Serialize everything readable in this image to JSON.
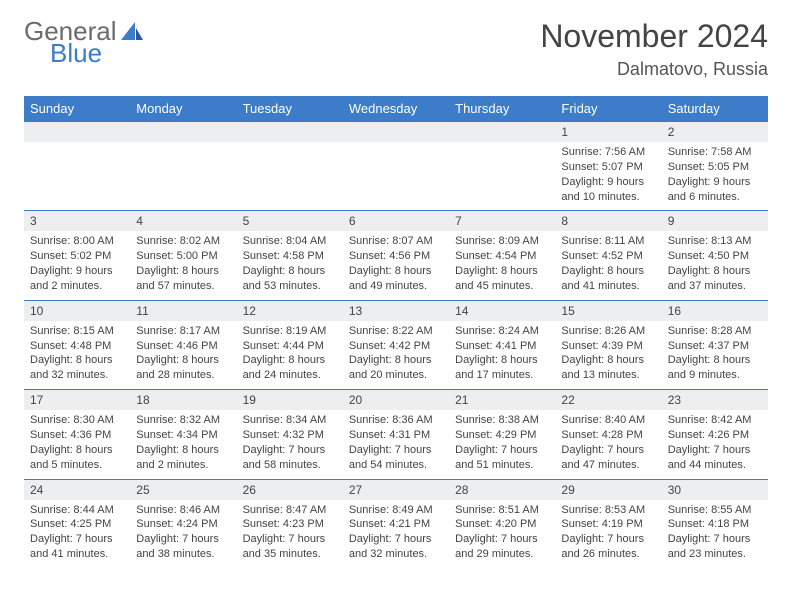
{
  "logo": {
    "word1": "General",
    "word2": "Blue"
  },
  "header": {
    "month_title": "November 2024",
    "location": "Dalmatovo, Russia"
  },
  "colors": {
    "header_bg": "#3d7cc9",
    "header_fg": "#ffffff",
    "daynum_bg": "#eceef0",
    "text": "#444444",
    "logo_gray": "#6b6b6b",
    "logo_blue": "#3d7cc9",
    "row_border": "#3d7cc9"
  },
  "weekdays": [
    "Sunday",
    "Monday",
    "Tuesday",
    "Wednesday",
    "Thursday",
    "Friday",
    "Saturday"
  ],
  "weeks": [
    [
      {
        "n": "",
        "lines": []
      },
      {
        "n": "",
        "lines": []
      },
      {
        "n": "",
        "lines": []
      },
      {
        "n": "",
        "lines": []
      },
      {
        "n": "",
        "lines": []
      },
      {
        "n": "1",
        "lines": [
          "Sunrise: 7:56 AM",
          "Sunset: 5:07 PM",
          "Daylight: 9 hours",
          "and 10 minutes."
        ]
      },
      {
        "n": "2",
        "lines": [
          "Sunrise: 7:58 AM",
          "Sunset: 5:05 PM",
          "Daylight: 9 hours",
          "and 6 minutes."
        ]
      }
    ],
    [
      {
        "n": "3",
        "lines": [
          "Sunrise: 8:00 AM",
          "Sunset: 5:02 PM",
          "Daylight: 9 hours",
          "and 2 minutes."
        ]
      },
      {
        "n": "4",
        "lines": [
          "Sunrise: 8:02 AM",
          "Sunset: 5:00 PM",
          "Daylight: 8 hours",
          "and 57 minutes."
        ]
      },
      {
        "n": "5",
        "lines": [
          "Sunrise: 8:04 AM",
          "Sunset: 4:58 PM",
          "Daylight: 8 hours",
          "and 53 minutes."
        ]
      },
      {
        "n": "6",
        "lines": [
          "Sunrise: 8:07 AM",
          "Sunset: 4:56 PM",
          "Daylight: 8 hours",
          "and 49 minutes."
        ]
      },
      {
        "n": "7",
        "lines": [
          "Sunrise: 8:09 AM",
          "Sunset: 4:54 PM",
          "Daylight: 8 hours",
          "and 45 minutes."
        ]
      },
      {
        "n": "8",
        "lines": [
          "Sunrise: 8:11 AM",
          "Sunset: 4:52 PM",
          "Daylight: 8 hours",
          "and 41 minutes."
        ]
      },
      {
        "n": "9",
        "lines": [
          "Sunrise: 8:13 AM",
          "Sunset: 4:50 PM",
          "Daylight: 8 hours",
          "and 37 minutes."
        ]
      }
    ],
    [
      {
        "n": "10",
        "lines": [
          "Sunrise: 8:15 AM",
          "Sunset: 4:48 PM",
          "Daylight: 8 hours",
          "and 32 minutes."
        ]
      },
      {
        "n": "11",
        "lines": [
          "Sunrise: 8:17 AM",
          "Sunset: 4:46 PM",
          "Daylight: 8 hours",
          "and 28 minutes."
        ]
      },
      {
        "n": "12",
        "lines": [
          "Sunrise: 8:19 AM",
          "Sunset: 4:44 PM",
          "Daylight: 8 hours",
          "and 24 minutes."
        ]
      },
      {
        "n": "13",
        "lines": [
          "Sunrise: 8:22 AM",
          "Sunset: 4:42 PM",
          "Daylight: 8 hours",
          "and 20 minutes."
        ]
      },
      {
        "n": "14",
        "lines": [
          "Sunrise: 8:24 AM",
          "Sunset: 4:41 PM",
          "Daylight: 8 hours",
          "and 17 minutes."
        ]
      },
      {
        "n": "15",
        "lines": [
          "Sunrise: 8:26 AM",
          "Sunset: 4:39 PM",
          "Daylight: 8 hours",
          "and 13 minutes."
        ]
      },
      {
        "n": "16",
        "lines": [
          "Sunrise: 8:28 AM",
          "Sunset: 4:37 PM",
          "Daylight: 8 hours",
          "and 9 minutes."
        ]
      }
    ],
    [
      {
        "n": "17",
        "lines": [
          "Sunrise: 8:30 AM",
          "Sunset: 4:36 PM",
          "Daylight: 8 hours",
          "and 5 minutes."
        ]
      },
      {
        "n": "18",
        "lines": [
          "Sunrise: 8:32 AM",
          "Sunset: 4:34 PM",
          "Daylight: 8 hours",
          "and 2 minutes."
        ]
      },
      {
        "n": "19",
        "lines": [
          "Sunrise: 8:34 AM",
          "Sunset: 4:32 PM",
          "Daylight: 7 hours",
          "and 58 minutes."
        ]
      },
      {
        "n": "20",
        "lines": [
          "Sunrise: 8:36 AM",
          "Sunset: 4:31 PM",
          "Daylight: 7 hours",
          "and 54 minutes."
        ]
      },
      {
        "n": "21",
        "lines": [
          "Sunrise: 8:38 AM",
          "Sunset: 4:29 PM",
          "Daylight: 7 hours",
          "and 51 minutes."
        ]
      },
      {
        "n": "22",
        "lines": [
          "Sunrise: 8:40 AM",
          "Sunset: 4:28 PM",
          "Daylight: 7 hours",
          "and 47 minutes."
        ]
      },
      {
        "n": "23",
        "lines": [
          "Sunrise: 8:42 AM",
          "Sunset: 4:26 PM",
          "Daylight: 7 hours",
          "and 44 minutes."
        ]
      }
    ],
    [
      {
        "n": "24",
        "lines": [
          "Sunrise: 8:44 AM",
          "Sunset: 4:25 PM",
          "Daylight: 7 hours",
          "and 41 minutes."
        ]
      },
      {
        "n": "25",
        "lines": [
          "Sunrise: 8:46 AM",
          "Sunset: 4:24 PM",
          "Daylight: 7 hours",
          "and 38 minutes."
        ]
      },
      {
        "n": "26",
        "lines": [
          "Sunrise: 8:47 AM",
          "Sunset: 4:23 PM",
          "Daylight: 7 hours",
          "and 35 minutes."
        ]
      },
      {
        "n": "27",
        "lines": [
          "Sunrise: 8:49 AM",
          "Sunset: 4:21 PM",
          "Daylight: 7 hours",
          "and 32 minutes."
        ]
      },
      {
        "n": "28",
        "lines": [
          "Sunrise: 8:51 AM",
          "Sunset: 4:20 PM",
          "Daylight: 7 hours",
          "and 29 minutes."
        ]
      },
      {
        "n": "29",
        "lines": [
          "Sunrise: 8:53 AM",
          "Sunset: 4:19 PM",
          "Daylight: 7 hours",
          "and 26 minutes."
        ]
      },
      {
        "n": "30",
        "lines": [
          "Sunrise: 8:55 AM",
          "Sunset: 4:18 PM",
          "Daylight: 7 hours",
          "and 23 minutes."
        ]
      }
    ]
  ]
}
